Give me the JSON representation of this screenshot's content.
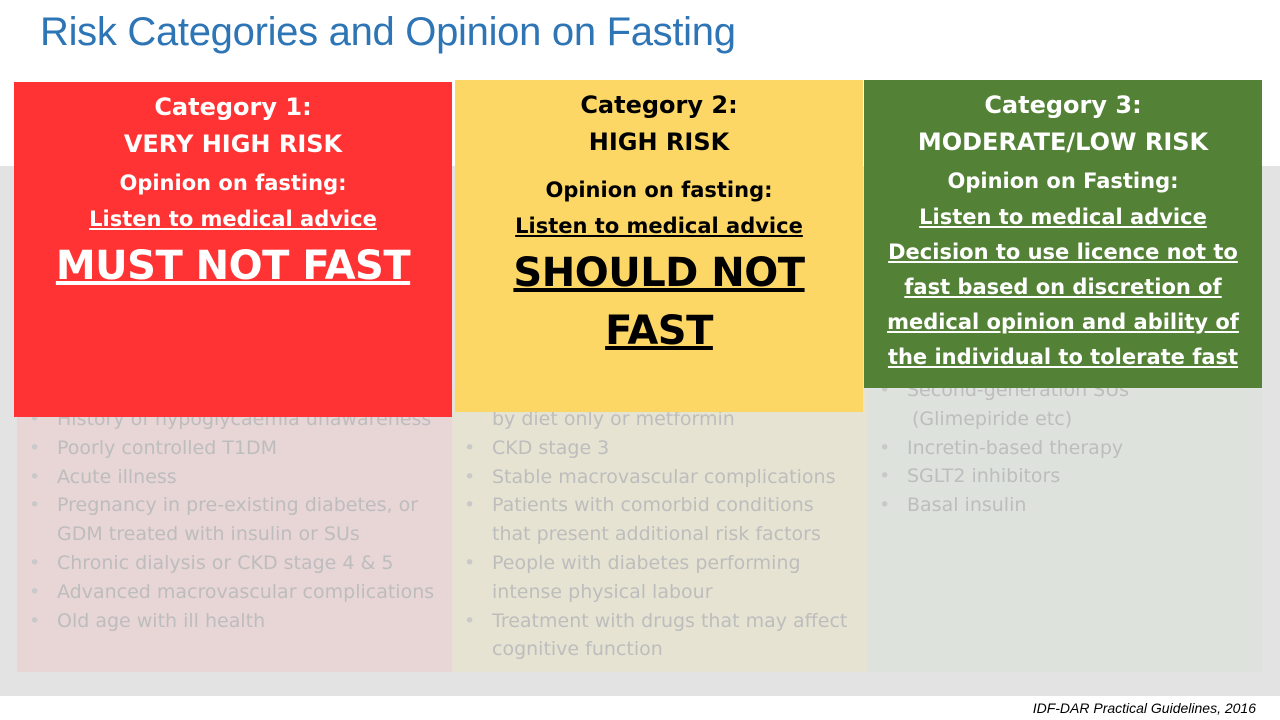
{
  "title": "Risk Categories and Opinion on Fasting",
  "citation": "IDF-DAR Practical Guidelines, 2016",
  "categories": [
    {
      "heading": "Category 1:",
      "risk": "VERY HIGH RISK",
      "opinion_label": "Opinion on fasting:",
      "advice": "Listen to medical advice",
      "verdict": "MUST NOT FAST",
      "color": "#ff3333",
      "items": [
        "History of hypoglycaemia unawareness",
        "Poorly controlled T1DM",
        "Acute illness",
        "Pregnancy in pre-existing diabetes, or",
        "GDM treated with insulin or SUs",
        "Chronic dialysis or CKD stage 4 & 5",
        "Advanced macrovascular complications",
        "Old age with ill health"
      ]
    },
    {
      "heading": "Category 2:",
      "risk": "HIGH RISK",
      "opinion_label": "Opinion on fasting:",
      "advice": "Listen to medical advice",
      "verdict": "SHOULD NOT FAST",
      "color": "#fcd766",
      "items": [
        "by diet only or metformin",
        "CKD stage 3",
        "Stable macrovascular complications",
        "Patients with comorbid conditions",
        "that present additional risk factors",
        "People with diabetes performing",
        "intense physical labour",
        "Treatment with drugs that may affect",
        "cognitive function"
      ]
    },
    {
      "heading": "Category 3:",
      "risk": "MODERATE/LOW RISK",
      "opinion_label": "Opinion on Fasting:",
      "advice": "Listen to medical advice",
      "decision": [
        "Decision to use licence not to",
        "fast based on discretion of",
        "medical opinion and ability of",
        "the individual to tolerate fast"
      ],
      "color": "#538135",
      "items": [
        "Second-generation SUs",
        "(Glimepiride etc)",
        "Incretin-based therapy",
        "SGLT2 inhibitors",
        "Basal insulin"
      ]
    }
  ]
}
